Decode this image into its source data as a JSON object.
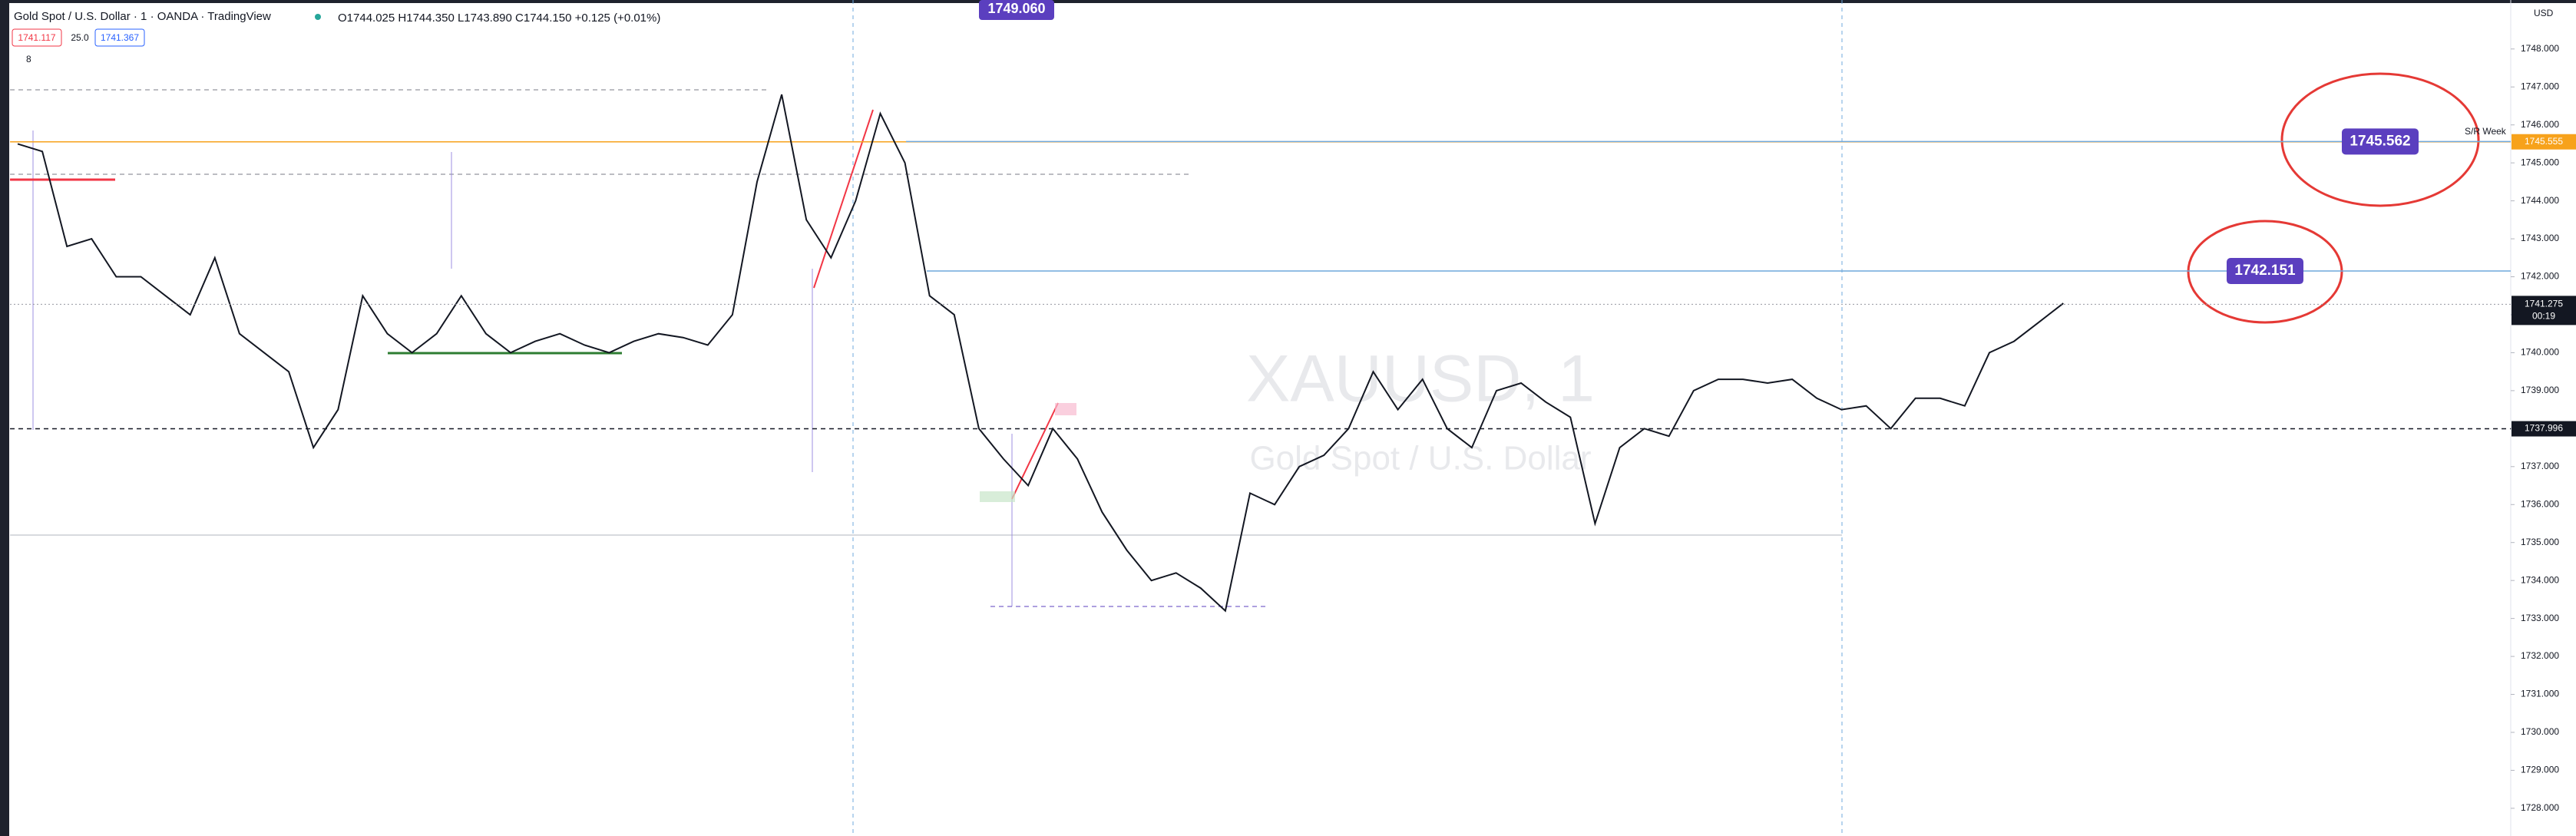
{
  "chart_data": {
    "type": "line",
    "title": "Gold Spot / U.S. Dollar · 1 · OANDA · TradingView",
    "ohlc": "O1744.025 H1744.350 L1743.890 C1744.150 +0.125 (+0.01%)",
    "sell": "1741.117",
    "spread": "25.0",
    "buy": "1741.367",
    "indicators": "8",
    "currency": "USD",
    "watermark": [
      "XAUUSD, 1",
      "Gold Spot / U.S. Dollar"
    ],
    "crosshair_label": "1749.060",
    "sr_label": "S/R Week",
    "color": "#131722",
    "grid": false,
    "ylim": [
      1727.27,
      1749.29
    ],
    "yticks": [
      {
        "value": 1728,
        "label": "1728.000"
      },
      {
        "value": 1729,
        "label": "1729.000"
      },
      {
        "value": 1730,
        "label": "1730.000"
      },
      {
        "value": 1731,
        "label": "1731.000"
      },
      {
        "value": 1732,
        "label": "1732.000"
      },
      {
        "value": 1733,
        "label": "1733.000"
      },
      {
        "value": 1734,
        "label": "1734.000"
      },
      {
        "value": 1735,
        "label": "1735.000"
      },
      {
        "value": 1736,
        "label": "1736.000"
      },
      {
        "value": 1737,
        "label": "1737.000"
      },
      {
        "value": 1738,
        "label": "1738.000"
      },
      {
        "value": 1739,
        "label": "1739.000"
      },
      {
        "value": 1740,
        "label": "1740.000"
      },
      {
        "value": 1741,
        "label": "1741.000"
      },
      {
        "value": 1742,
        "label": "1742.000"
      },
      {
        "value": 1743,
        "label": "1743.000"
      },
      {
        "value": 1744,
        "label": "1744.000"
      },
      {
        "value": 1745,
        "label": "1745.000"
      },
      {
        "value": 1746,
        "label": "1746.000"
      },
      {
        "value": 1747,
        "label": "1747.000"
      },
      {
        "value": 1748,
        "label": "1748.000"
      }
    ],
    "values": [
      1745.5,
      1745.3,
      1742.8,
      1743,
      1742,
      1742,
      1741.5,
      1741,
      1742.5,
      1740.5,
      1740,
      1739.5,
      1737.5,
      1738.5,
      1741.5,
      1740.5,
      1740,
      1740.5,
      1741.5,
      1740.5,
      1740,
      1740.3,
      1740.5,
      1740.2,
      1740,
      1740.3,
      1740.5,
      1740.4,
      1740.2,
      1741,
      1744.5,
      1746.8,
      1743.5,
      1742.5,
      1744,
      1746.3,
      1745,
      1741.5,
      1741,
      1738,
      1737.2,
      1736.5,
      1738,
      1737.2,
      1735.8,
      1734.8,
      1734,
      1734.2,
      1733.8,
      1733.2,
      1736.3,
      1736,
      1737,
      1737.3,
      1738,
      1739.5,
      1738.5,
      1739.3,
      1738,
      1737.5,
      1739,
      1739.2,
      1738.7,
      1738.3,
      1735.5,
      1737.5,
      1738,
      1737.8,
      1739,
      1739.3,
      1739.3,
      1739.2,
      1739.3,
      1738.8,
      1738.5,
      1738.6,
      1738,
      1738.8,
      1738.8,
      1738.6,
      1740,
      1740.3,
      1740.8,
      1741.3
    ],
    "levels": [
      {
        "value": 1745.555,
        "color": "#f7a21b"
      },
      {
        "value": 1737.996,
        "color": "#131722"
      }
    ],
    "callouts": [
      {
        "value": 1745.562,
        "color": "#5b3fbf"
      },
      {
        "value": 1742.151,
        "color": "#5b3fbf"
      }
    ],
    "last_price": {
      "value": 1741.275,
      "countdown": "00:19"
    }
  }
}
